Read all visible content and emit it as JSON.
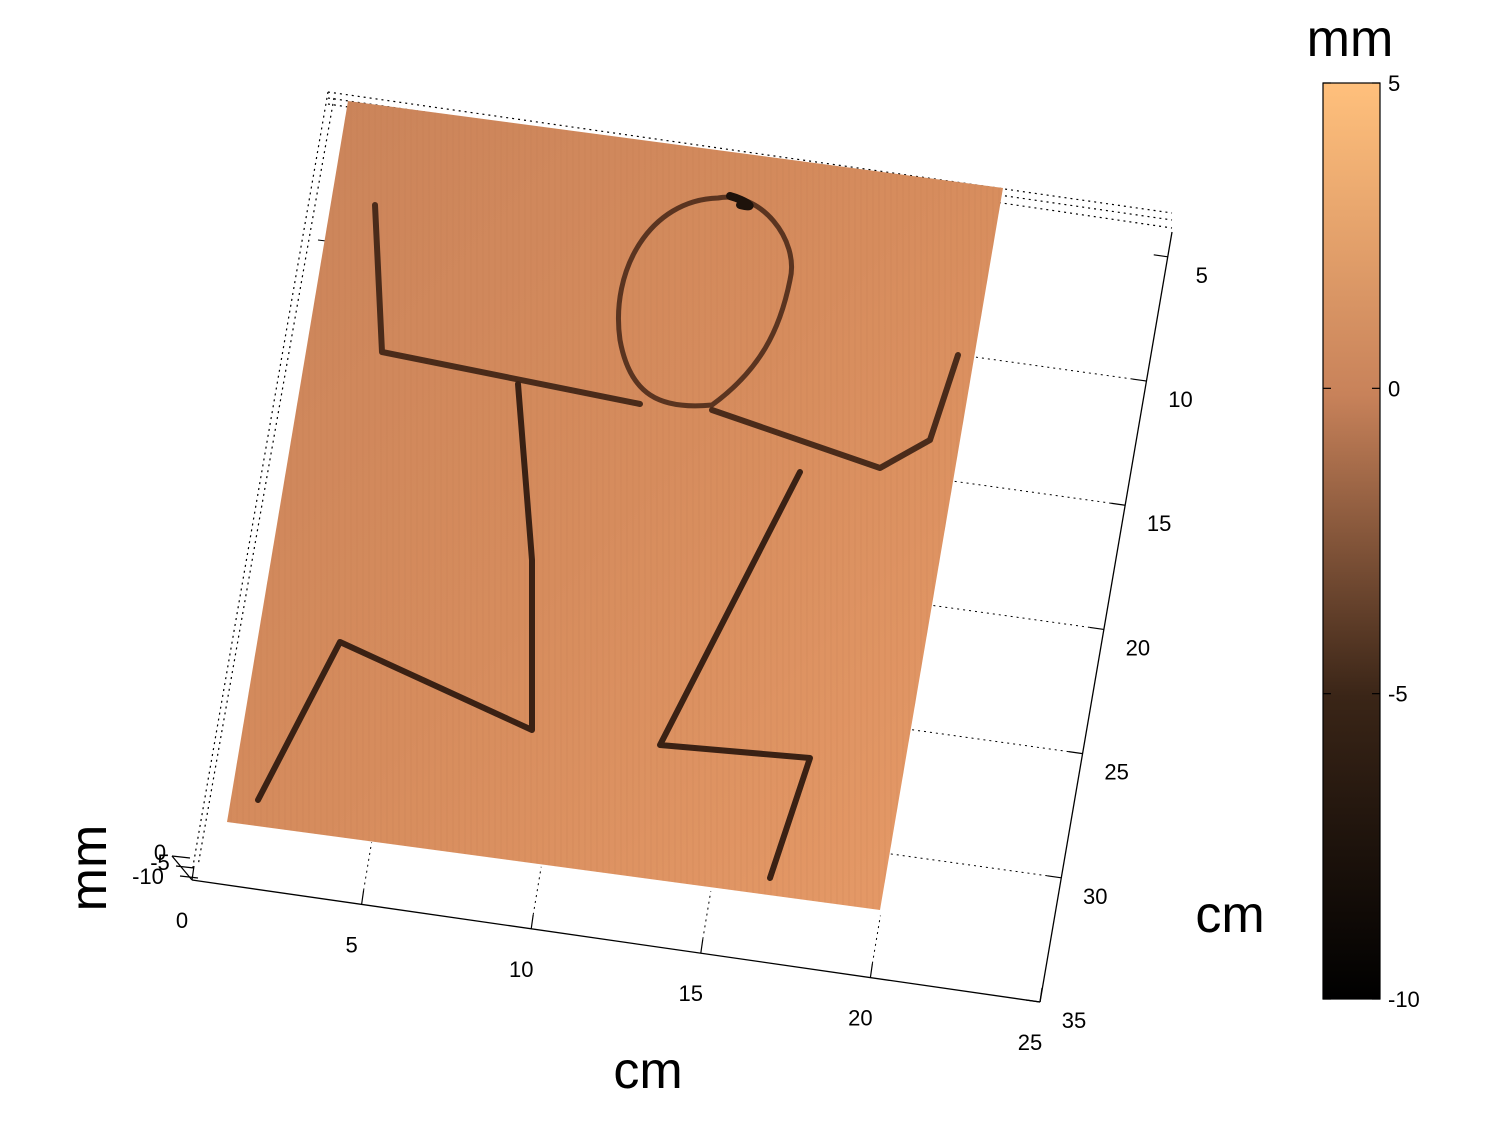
{
  "chart_data": {
    "type": "surface",
    "title": "",
    "description_of_surface": "",
    "xlabel": "cm",
    "ylabel": "cm",
    "zlabel": "mm",
    "x_ticks": [
      0,
      5,
      10,
      15,
      20,
      25
    ],
    "y_ticks": [
      5,
      10,
      15,
      20,
      25,
      30,
      35
    ],
    "z_ticks": [
      0,
      -5,
      -10
    ],
    "xlim": [
      0,
      25
    ],
    "ylim": [
      3,
      35
    ],
    "zlim": [
      -10,
      0
    ],
    "grid": true,
    "surface_height_mm": 0,
    "groove_depth_mm": -5,
    "colormap": "copper",
    "colorbar": {
      "label": "mm",
      "ticks": [
        5,
        0,
        -5,
        -10
      ],
      "range": [
        -10,
        5
      ],
      "colors": [
        "#000000",
        "#7a4d31",
        "#ff9e65",
        "#ffc07c"
      ]
    },
    "surface_color": "#d48a5a"
  }
}
